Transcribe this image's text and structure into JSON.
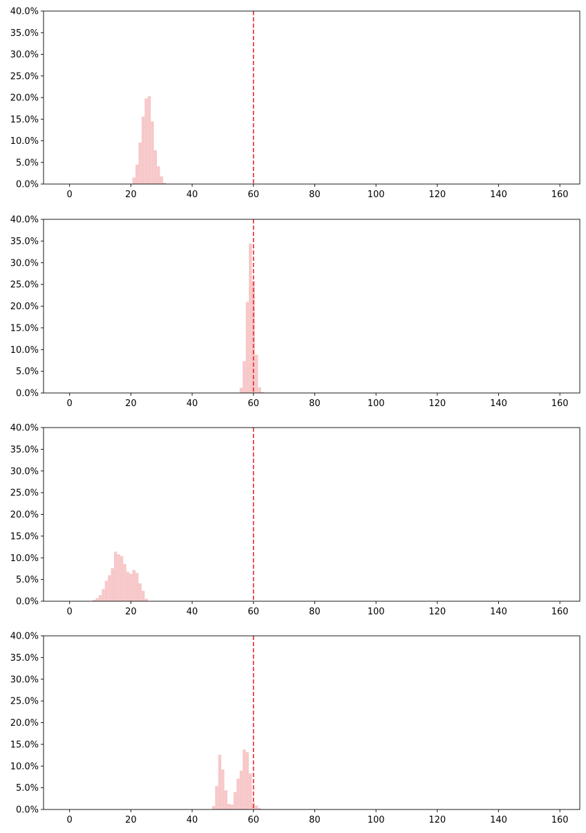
{
  "chart_data": [
    {
      "type": "bar",
      "title": "",
      "xlabel": "",
      "ylabel": "",
      "xlim": [
        -8.5,
        166.5
      ],
      "ylim": [
        0,
        0.4
      ],
      "x_ticks": [
        0,
        20,
        40,
        60,
        80,
        100,
        120,
        140,
        160
      ],
      "y_ticks": [
        0,
        0.05,
        0.1,
        0.15,
        0.2,
        0.25,
        0.3,
        0.35,
        0.4
      ],
      "x_tick_labels": [
        "0",
        "20",
        "40",
        "60",
        "80",
        "100",
        "120",
        "140",
        "160"
      ],
      "y_tick_labels": [
        "0.0%",
        "5.0%",
        "10.0%",
        "15.0%",
        "20.0%",
        "25.0%",
        "30.0%",
        "35.0%",
        "40.0%"
      ],
      "bin_width": 1,
      "bar_color": "#f7c8c9",
      "reference_line": {
        "x": 60,
        "color": "#e8272f",
        "style": "dashed"
      },
      "bins": [
        {
          "x": 21,
          "value": 0.015
        },
        {
          "x": 22,
          "value": 0.045
        },
        {
          "x": 23,
          "value": 0.096
        },
        {
          "x": 24,
          "value": 0.156
        },
        {
          "x": 25,
          "value": 0.198
        },
        {
          "x": 26,
          "value": 0.203
        },
        {
          "x": 27,
          "value": 0.145
        },
        {
          "x": 28,
          "value": 0.078
        },
        {
          "x": 29,
          "value": 0.041
        },
        {
          "x": 30,
          "value": 0.018
        },
        {
          "x": 31,
          "value": 0.003
        }
      ]
    },
    {
      "type": "bar",
      "title": "",
      "xlabel": "",
      "ylabel": "",
      "xlim": [
        -8.5,
        166.5
      ],
      "ylim": [
        0,
        0.4
      ],
      "x_ticks": [
        0,
        20,
        40,
        60,
        80,
        100,
        120,
        140,
        160
      ],
      "y_ticks": [
        0,
        0.05,
        0.1,
        0.15,
        0.2,
        0.25,
        0.3,
        0.35,
        0.4
      ],
      "x_tick_labels": [
        "0",
        "20",
        "40",
        "60",
        "80",
        "100",
        "120",
        "140",
        "160"
      ],
      "y_tick_labels": [
        "0.0%",
        "5.0%",
        "10.0%",
        "15.0%",
        "20.0%",
        "25.0%",
        "30.0%",
        "35.0%",
        "40.0%"
      ],
      "bin_width": 1,
      "bar_color": "#f7c8c9",
      "reference_line": {
        "x": 60,
        "color": "#e8272f",
        "style": "dashed"
      },
      "bins": [
        {
          "x": 56,
          "value": 0.012
        },
        {
          "x": 57,
          "value": 0.073
        },
        {
          "x": 58,
          "value": 0.21
        },
        {
          "x": 59,
          "value": 0.344
        },
        {
          "x": 60,
          "value": 0.258
        },
        {
          "x": 61,
          "value": 0.088
        },
        {
          "x": 62,
          "value": 0.013
        },
        {
          "x": 63,
          "value": 0.002
        }
      ]
    },
    {
      "type": "bar",
      "title": "",
      "xlabel": "",
      "ylabel": "",
      "xlim": [
        -8.5,
        166.5
      ],
      "ylim": [
        0,
        0.4
      ],
      "x_ticks": [
        0,
        20,
        40,
        60,
        80,
        100,
        120,
        140,
        160
      ],
      "y_ticks": [
        0,
        0.05,
        0.1,
        0.15,
        0.2,
        0.25,
        0.3,
        0.35,
        0.4
      ],
      "x_tick_labels": [
        "0",
        "20",
        "40",
        "60",
        "80",
        "100",
        "120",
        "140",
        "160"
      ],
      "y_tick_labels": [
        "0.0%",
        "5.0%",
        "10.0%",
        "15.0%",
        "20.0%",
        "25.0%",
        "30.0%",
        "35.0%",
        "40.0%"
      ],
      "bin_width": 1,
      "bar_color": "#f7c8c9",
      "reference_line": {
        "x": 60,
        "color": "#e8272f",
        "style": "dashed"
      },
      "bins": [
        {
          "x": 8,
          "value": 0.003
        },
        {
          "x": 9,
          "value": 0.007
        },
        {
          "x": 10,
          "value": 0.014
        },
        {
          "x": 11,
          "value": 0.028
        },
        {
          "x": 12,
          "value": 0.047
        },
        {
          "x": 13,
          "value": 0.06
        },
        {
          "x": 14,
          "value": 0.076
        },
        {
          "x": 15,
          "value": 0.114
        },
        {
          "x": 16,
          "value": 0.108
        },
        {
          "x": 17,
          "value": 0.104
        },
        {
          "x": 18,
          "value": 0.086
        },
        {
          "x": 19,
          "value": 0.068
        },
        {
          "x": 20,
          "value": 0.063
        },
        {
          "x": 21,
          "value": 0.072
        },
        {
          "x": 22,
          "value": 0.065
        },
        {
          "x": 23,
          "value": 0.041
        },
        {
          "x": 24,
          "value": 0.024
        },
        {
          "x": 25,
          "value": 0.006
        }
      ]
    },
    {
      "type": "bar",
      "title": "",
      "xlabel": "",
      "ylabel": "",
      "xlim": [
        -8.5,
        166.5
      ],
      "ylim": [
        0,
        0.4
      ],
      "x_ticks": [
        0,
        20,
        40,
        60,
        80,
        100,
        120,
        140,
        160
      ],
      "y_ticks": [
        0,
        0.05,
        0.1,
        0.15,
        0.2,
        0.25,
        0.3,
        0.35,
        0.4
      ],
      "x_tick_labels": [
        "0",
        "20",
        "40",
        "60",
        "80",
        "100",
        "120",
        "140",
        "160"
      ],
      "y_tick_labels": [
        "0.0%",
        "5.0%",
        "10.0%",
        "15.0%",
        "20.0%",
        "25.0%",
        "30.0%",
        "35.0%",
        "40.0%"
      ],
      "bin_width": 1,
      "bar_color": "#f7c8c9",
      "reference_line": {
        "x": 60,
        "color": "#e8272f",
        "style": "dashed"
      },
      "bins": [
        {
          "x": 47,
          "value": 0.008
        },
        {
          "x": 48,
          "value": 0.054
        },
        {
          "x": 49,
          "value": 0.126
        },
        {
          "x": 50,
          "value": 0.092
        },
        {
          "x": 51,
          "value": 0.044
        },
        {
          "x": 52,
          "value": 0.013
        },
        {
          "x": 53,
          "value": 0.011
        },
        {
          "x": 54,
          "value": 0.04
        },
        {
          "x": 55,
          "value": 0.071
        },
        {
          "x": 56,
          "value": 0.089
        },
        {
          "x": 57,
          "value": 0.138
        },
        {
          "x": 58,
          "value": 0.132
        },
        {
          "x": 59,
          "value": 0.083
        },
        {
          "x": 60,
          "value": 0.016
        },
        {
          "x": 61,
          "value": 0.009
        },
        {
          "x": 62,
          "value": 0.003
        }
      ]
    }
  ]
}
